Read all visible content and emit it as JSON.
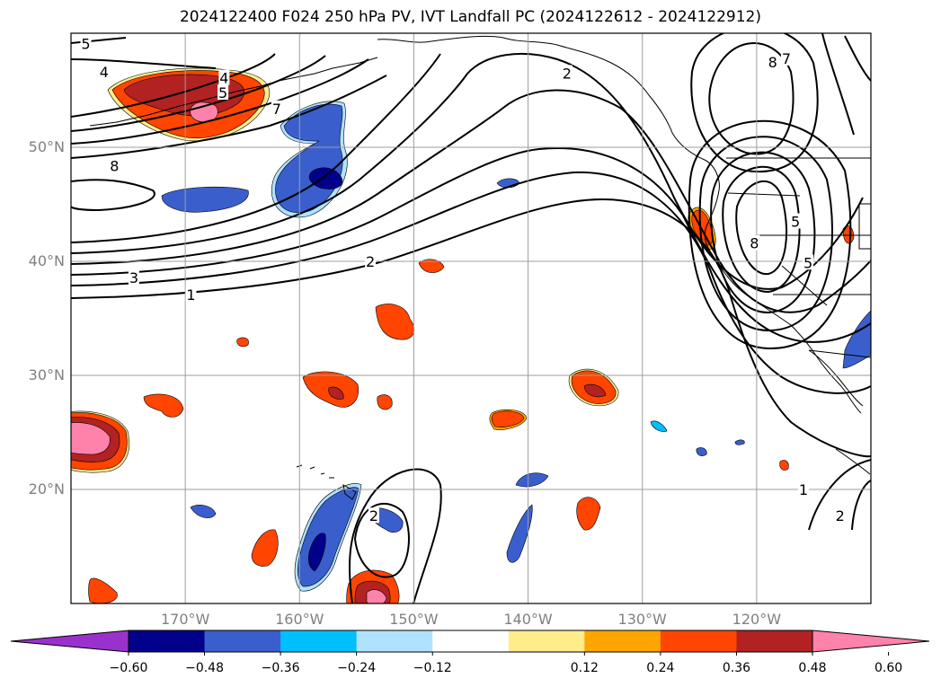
{
  "title": "2024122400 F024 250 hPa PV, IVT Landfall PC (2024122612 - 2024122912)",
  "map": {
    "lon_range": [
      -180,
      -110
    ],
    "lat_range": [
      10,
      60
    ],
    "lon_ticks": [
      {
        "value": -170,
        "label": "170°W"
      },
      {
        "value": -160,
        "label": "160°W"
      },
      {
        "value": -150,
        "label": "150°W"
      },
      {
        "value": -140,
        "label": "140°W"
      },
      {
        "value": -130,
        "label": "130°W"
      },
      {
        "value": -120,
        "label": "120°W"
      }
    ],
    "lat_ticks": [
      {
        "value": 20,
        "label": "20°N"
      },
      {
        "value": 30,
        "label": "30°N"
      },
      {
        "value": 40,
        "label": "40°N"
      },
      {
        "value": 50,
        "label": "50°N"
      }
    ],
    "grid": true
  },
  "colorbar": {
    "colors": [
      "#9932cc",
      "#00008b",
      "#3a5fcd",
      "#00bfff",
      "#b0e2ff",
      "#ffffff",
      "#ffec8b",
      "#ffa500",
      "#ff4500",
      "#b22222",
      "#ff82ab"
    ],
    "labels": [
      "−0.60",
      "−0.48",
      "−0.36",
      "−0.24",
      "−0.12",
      "0.12",
      "0.24",
      "0.36",
      "0.48",
      "0.60"
    ],
    "extend": "both"
  },
  "contour_labels": [
    {
      "text": "5",
      "lon": -178.7,
      "lat": 59.1
    },
    {
      "text": "4",
      "lon": -177.1,
      "lat": 56.6
    },
    {
      "text": "4",
      "lon": -166.6,
      "lat": 56.1
    },
    {
      "text": "5",
      "lon": -166.7,
      "lat": 54.8
    },
    {
      "text": "7",
      "lon": -162.0,
      "lat": 53.4
    },
    {
      "text": "8",
      "lon": -176.2,
      "lat": 48.4
    },
    {
      "text": "3",
      "lon": -174.5,
      "lat": 38.6
    },
    {
      "text": "1",
      "lon": -169.5,
      "lat": 37.1
    },
    {
      "text": "2",
      "lon": -153.8,
      "lat": 40.0
    },
    {
      "text": "2",
      "lon": -136.6,
      "lat": 56.5
    },
    {
      "text": "8",
      "lon": -118.6,
      "lat": 57.5
    },
    {
      "text": "7",
      "lon": -117.4,
      "lat": 57.8
    },
    {
      "text": "8",
      "lon": -120.2,
      "lat": 41.6
    },
    {
      "text": "5",
      "lon": -116.6,
      "lat": 43.5
    },
    {
      "text": "5",
      "lon": -115.5,
      "lat": 39.9
    },
    {
      "text": "2",
      "lon": -153.5,
      "lat": 17.7
    },
    {
      "text": "1",
      "lon": -115.9,
      "lat": 20.0
    },
    {
      "text": "2",
      "lon": -112.7,
      "lat": 17.7
    }
  ]
}
